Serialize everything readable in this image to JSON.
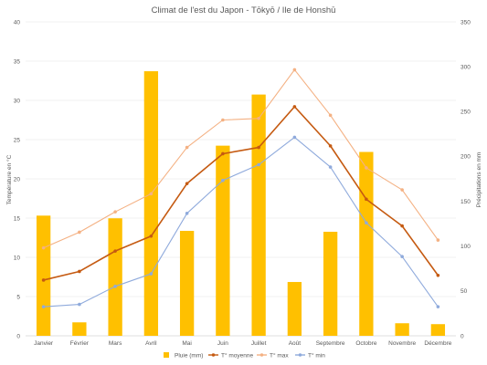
{
  "chart_data": {
    "type": "bar+line",
    "title": "Climat de l'est du Japon - Tōkyō / Ile de Honshū",
    "categories": [
      "Janvier",
      "Février",
      "Mars",
      "Avril",
      "Mai",
      "Juin",
      "Juillet",
      "Août",
      "Septembre",
      "Octobre",
      "Novembre",
      "Décembre"
    ],
    "y_left": {
      "label": "Température en °C",
      "min": 0,
      "max": 40,
      "step": 5
    },
    "y_right": {
      "label": "Précipitations en mm",
      "min": 0,
      "max": 350,
      "step": 50
    },
    "series": [
      {
        "name": "Pluie (mm)",
        "type": "bar",
        "axis": "right",
        "color": "#FFC000",
        "values": [
          134,
          15,
          131,
          295,
          117,
          212,
          269,
          60,
          116,
          205,
          14,
          13
        ]
      },
      {
        "name": "T° moyenne",
        "type": "line",
        "axis": "left",
        "color": "#C55A11",
        "values": [
          7.1,
          8.2,
          10.8,
          12.7,
          19.4,
          23.2,
          24.0,
          29.2,
          24.2,
          17.4,
          14.0,
          7.7
        ]
      },
      {
        "name": "T° max",
        "type": "line",
        "axis": "left",
        "color": "#F4B183",
        "values": [
          11.2,
          13.2,
          15.8,
          18.1,
          24.0,
          27.5,
          27.7,
          33.9,
          28.1,
          21.4,
          18.6,
          12.2
        ]
      },
      {
        "name": "T° min",
        "type": "line",
        "axis": "left",
        "color": "#8FAADC",
        "values": [
          3.7,
          4.0,
          6.3,
          7.9,
          15.6,
          19.8,
          21.8,
          25.3,
          21.5,
          14.4,
          10.1,
          3.7
        ]
      }
    ],
    "grid": true,
    "legend_position": "bottom"
  }
}
